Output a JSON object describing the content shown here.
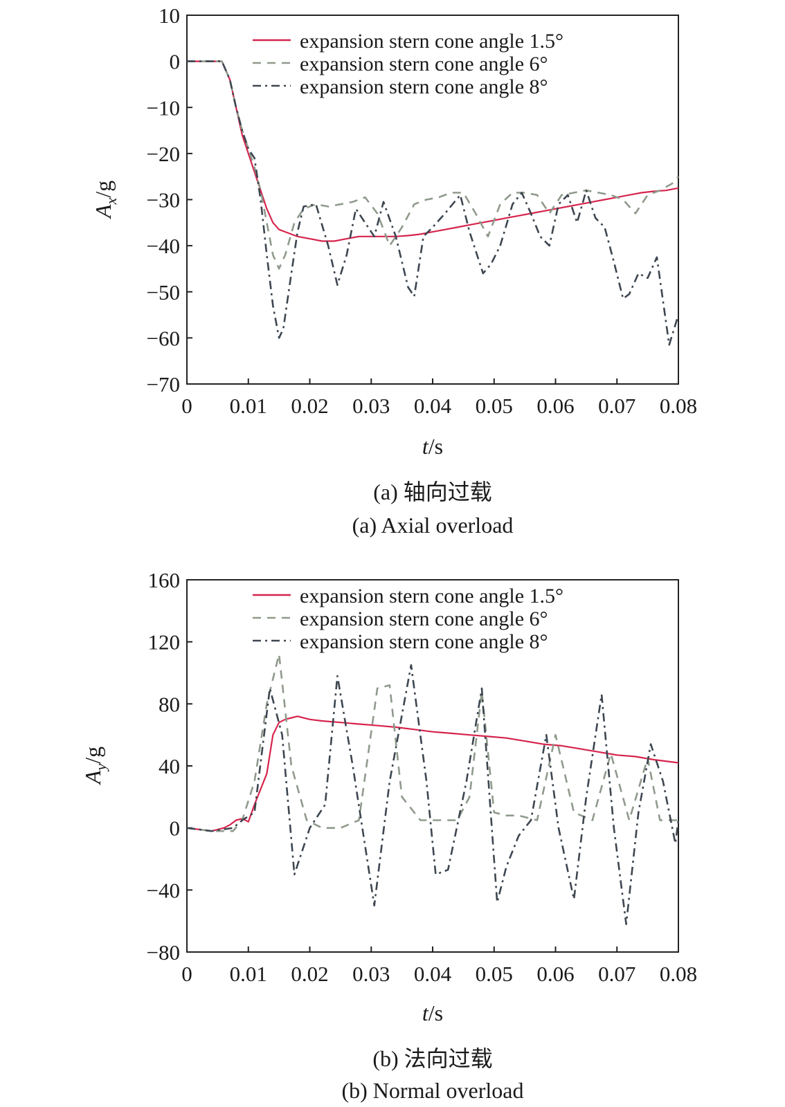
{
  "chart_data": [
    {
      "type": "line",
      "caption_cn": "(a) 轴向过载",
      "caption_en": "(a) Axial overload",
      "xlabel_var": "t",
      "xlabel_unit": "/s",
      "ylabel_var": "A",
      "ylabel_sub": "x",
      "ylabel_unit": "/g",
      "xlim": [
        0,
        0.08
      ],
      "ylim": [
        -70,
        10
      ],
      "xticks": [
        0,
        0.01,
        0.02,
        0.03,
        0.04,
        0.05,
        0.06,
        0.07,
        0.08
      ],
      "xtick_labels": [
        "0",
        "0.01",
        "0.02",
        "0.03",
        "0.04",
        "0.05",
        "0.06",
        "0.07",
        "0.08"
      ],
      "yticks": [
        10,
        0,
        -10,
        -20,
        -30,
        -40,
        -50,
        -60,
        -70
      ],
      "ytick_labels": [
        "10",
        "0",
        "−10",
        "−20",
        "−30",
        "−40",
        "−50",
        "−60",
        "−70"
      ],
      "grid": false,
      "legend_position": "top-right",
      "series": [
        {
          "name": "expansion stern cone angle 1.5°",
          "color": "#d6244c",
          "dash": "solid",
          "x": [
            0,
            0.002,
            0.004,
            0.0057,
            0.007,
            0.008,
            0.009,
            0.01,
            0.011,
            0.012,
            0.013,
            0.014,
            0.015,
            0.016,
            0.017,
            0.018,
            0.02,
            0.022,
            0.024,
            0.026,
            0.028,
            0.03,
            0.032,
            0.034,
            0.036,
            0.038,
            0.04,
            0.042,
            0.044,
            0.046,
            0.048,
            0.05,
            0.052,
            0.054,
            0.056,
            0.058,
            0.06,
            0.062,
            0.064,
            0.066,
            0.068,
            0.07,
            0.072,
            0.074,
            0.076,
            0.078,
            0.08
          ],
          "y": [
            0,
            0,
            0,
            0,
            -4,
            -10,
            -16,
            -20,
            -24,
            -28,
            -32,
            -35,
            -36.5,
            -37,
            -37.5,
            -38,
            -38.5,
            -39,
            -39,
            -38.5,
            -38,
            -38,
            -38,
            -38,
            -37.8,
            -37.5,
            -37,
            -36.5,
            -36,
            -35.5,
            -35,
            -34.5,
            -34,
            -33.5,
            -33,
            -32.5,
            -32,
            -31.5,
            -31,
            -30.5,
            -30,
            -29.5,
            -29,
            -28.5,
            -28.2,
            -28,
            -27.5
          ]
        },
        {
          "name": "expansion stern cone angle 6°",
          "color": "#8f9a8c",
          "dash": "dashed",
          "x": [
            0,
            0.002,
            0.004,
            0.0057,
            0.007,
            0.008,
            0.009,
            0.01,
            0.011,
            0.012,
            0.013,
            0.014,
            0.015,
            0.016,
            0.0175,
            0.019,
            0.021,
            0.023,
            0.025,
            0.027,
            0.029,
            0.031,
            0.033,
            0.035,
            0.037,
            0.039,
            0.041,
            0.043,
            0.045,
            0.047,
            0.049,
            0.051,
            0.053,
            0.055,
            0.057,
            0.059,
            0.061,
            0.063,
            0.065,
            0.067,
            0.069,
            0.071,
            0.073,
            0.075,
            0.077,
            0.079,
            0.08
          ],
          "y": [
            0,
            0,
            0,
            0,
            -4,
            -10,
            -15,
            -19,
            -23,
            -28,
            -35,
            -42,
            -45,
            -42,
            -35,
            -32,
            -31,
            -31.5,
            -31,
            -30.5,
            -29.5,
            -33,
            -40,
            -36,
            -31,
            -30,
            -29.5,
            -28.5,
            -28.5,
            -33,
            -38,
            -31,
            -28.5,
            -28.5,
            -29,
            -33,
            -29,
            -28.5,
            -28,
            -28.5,
            -29,
            -30,
            -33,
            -29,
            -28,
            -26.5,
            -25
          ]
        },
        {
          "name": "expansion stern cone angle 8°",
          "color": "#3d4650",
          "dash": "dashdot",
          "x": [
            0,
            0.002,
            0.004,
            0.0057,
            0.007,
            0.008,
            0.009,
            0.01,
            0.011,
            0.012,
            0.013,
            0.014,
            0.015,
            0.0157,
            0.017,
            0.018,
            0.019,
            0.021,
            0.023,
            0.0245,
            0.026,
            0.0275,
            0.029,
            0.0305,
            0.032,
            0.034,
            0.036,
            0.037,
            0.0385,
            0.04,
            0.042,
            0.0445,
            0.046,
            0.0482,
            0.0495,
            0.051,
            0.053,
            0.0545,
            0.056,
            0.0575,
            0.059,
            0.0605,
            0.062,
            0.0635,
            0.065,
            0.0665,
            0.068,
            0.0695,
            0.071,
            0.072,
            0.0735,
            0.075,
            0.0765,
            0.0785,
            0.08
          ],
          "y": [
            0,
            0,
            0,
            0,
            -4,
            -10,
            -15,
            -19,
            -21,
            -30,
            -42,
            -53,
            -60,
            -58,
            -46,
            -37,
            -31.5,
            -31,
            -40,
            -48.5,
            -42,
            -32,
            -35,
            -38,
            -30.5,
            -38,
            -49,
            -51,
            -38,
            -36,
            -33,
            -29,
            -37,
            -46,
            -44,
            -40,
            -31,
            -28.5,
            -33,
            -38,
            -40,
            -31,
            -29,
            -35,
            -28,
            -34,
            -36,
            -43.5,
            -51.5,
            -50.5,
            -46,
            -47,
            -42.5,
            -61.5,
            -55
          ]
        }
      ]
    },
    {
      "type": "line",
      "caption_cn": "(b) 法向过载",
      "caption_en": "(b) Normal overload",
      "xlabel_var": "t",
      "xlabel_unit": "/s",
      "ylabel_var": "A",
      "ylabel_sub": "y",
      "ylabel_unit": "/g",
      "xlim": [
        0,
        0.08
      ],
      "ylim": [
        -80,
        160
      ],
      "xticks": [
        0,
        0.01,
        0.02,
        0.03,
        0.04,
        0.05,
        0.06,
        0.07,
        0.08
      ],
      "xtick_labels": [
        "0",
        "0.01",
        "0.02",
        "0.03",
        "0.04",
        "0.05",
        "0.06",
        "0.07",
        "0.08"
      ],
      "yticks": [
        160,
        120,
        80,
        40,
        0,
        -40,
        -80
      ],
      "ytick_labels": [
        "160",
        "120",
        "80",
        "40",
        "0",
        "−40",
        "−80"
      ],
      "grid": false,
      "legend_position": "top-right",
      "series": [
        {
          "name": "expansion stern cone angle 1.5°",
          "color": "#d6244c",
          "dash": "solid",
          "x": [
            0,
            0.002,
            0.004,
            0.006,
            0.007,
            0.008,
            0.009,
            0.01,
            0.011,
            0.012,
            0.013,
            0.014,
            0.015,
            0.016,
            0.017,
            0.018,
            0.02,
            0.022,
            0.025,
            0.028,
            0.031,
            0.034,
            0.037,
            0.04,
            0.043,
            0.046,
            0.049,
            0.052,
            0.055,
            0.058,
            0.061,
            0.064,
            0.067,
            0.07,
            0.073,
            0.076,
            0.08
          ],
          "y": [
            0,
            -1,
            -2,
            0,
            2,
            5,
            6,
            4,
            15,
            25,
            35,
            60,
            68,
            70,
            71,
            72,
            70,
            69,
            68,
            67,
            66,
            65,
            63.5,
            62,
            61,
            60,
            59,
            58,
            56,
            54,
            53,
            51,
            49,
            47,
            46,
            44,
            42
          ]
        },
        {
          "name": "expansion stern cone angle 6°",
          "color": "#8f9a8c",
          "dash": "dashed",
          "x": [
            0,
            0.004,
            0.0075,
            0.009,
            0.011,
            0.013,
            0.015,
            0.017,
            0.0195,
            0.022,
            0.025,
            0.028,
            0.031,
            0.033,
            0.035,
            0.038,
            0.041,
            0.044,
            0.046,
            0.048,
            0.05,
            0.052,
            0.054,
            0.057,
            0.06,
            0.063,
            0.066,
            0.069,
            0.072,
            0.075,
            0.077,
            0.08
          ],
          "y": [
            0,
            -2,
            -2,
            5,
            30,
            80,
            112,
            40,
            5,
            0,
            0,
            5,
            90,
            92,
            20,
            5,
            5,
            5,
            20,
            88,
            10,
            8,
            8,
            5,
            60,
            10,
            5,
            48,
            5,
            45,
            5,
            5
          ]
        },
        {
          "name": "expansion stern cone angle 8°",
          "color": "#3d4650",
          "dash": "dashdot",
          "x": [
            0,
            0.004,
            0.0075,
            0.009,
            0.011,
            0.0135,
            0.0155,
            0.0175,
            0.02,
            0.0225,
            0.0245,
            0.027,
            0.0305,
            0.033,
            0.0365,
            0.039,
            0.0405,
            0.0425,
            0.0455,
            0.048,
            0.0505,
            0.052,
            0.054,
            0.056,
            0.0585,
            0.0605,
            0.063,
            0.065,
            0.0675,
            0.0695,
            0.0715,
            0.0735,
            0.0755,
            0.0775,
            0.0795,
            0.08
          ],
          "y": [
            0,
            -2,
            0,
            5,
            10,
            90,
            60,
            -30,
            0,
            15,
            98,
            40,
            -50,
            30,
            105,
            30,
            -30,
            -27,
            30,
            90,
            -48,
            -25,
            -5,
            5,
            60,
            0,
            -46,
            20,
            86,
            0,
            -62,
            10,
            54,
            30,
            -10,
            5
          ]
        }
      ]
    }
  ]
}
